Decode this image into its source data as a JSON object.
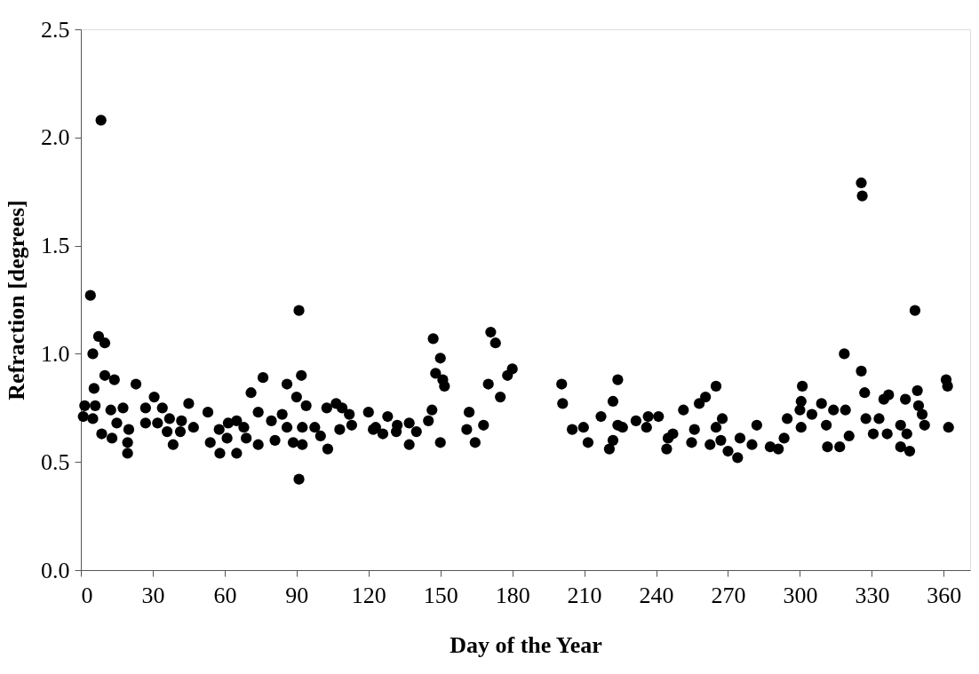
{
  "chart_data": {
    "type": "scatter",
    "xlabel": "Day of the Year",
    "ylabel": "Refraction [degrees]",
    "xlim": [
      0,
      371
    ],
    "xticks": [
      0,
      30,
      60,
      90,
      120,
      150,
      180,
      210,
      240,
      270,
      300,
      330,
      360
    ],
    "ylim": [
      0,
      2.5
    ],
    "yticks": [
      {
        "value": 0,
        "label": "0.0"
      },
      0.5,
      {
        "value": 1,
        "label": "1.0"
      },
      1.5,
      {
        "value": 2,
        "label": "2.0"
      },
      2.5
    ],
    "grid": false,
    "marker": "circle",
    "series": [
      {
        "color": "#000000",
        "x": [
          8.4,
          4,
          7.4,
          10,
          5,
          10,
          14,
          5.5,
          23,
          1.6,
          6,
          1,
          5,
          12.5,
          17.6,
          15,
          8.7,
          13,
          20,
          19.5,
          19.5,
          30.6,
          27,
          34,
          27,
          32,
          37,
          36,
          38.5,
          42,
          41.5,
          47,
          45,
          53,
          54,
          57.7,
          58,
          61.5,
          65,
          61,
          65,
          68,
          69,
          74,
          71,
          74,
          76,
          79.5,
          84,
          81,
          86,
          86,
          88.6,
          91,
          92,
          90,
          94,
          92.4,
          91,
          92.4,
          97.6,
          102.6,
          100,
          103,
          106.5,
          109,
          108,
          113,
          112,
          120,
          122,
          123,
          126,
          128,
          132,
          131.6,
          137,
          140,
          137,
          147,
          150,
          148,
          151,
          151.7,
          146.5,
          145,
          150,
          162,
          161,
          168,
          164.5,
          171,
          173,
          170,
          180,
          178,
          175,
          200.6,
          201,
          205,
          209.7,
          211.6,
          224,
          222,
          217,
          224,
          226,
          220.5,
          222,
          231.6,
          236,
          236.7,
          241,
          244.4,
          245,
          325.6,
          326,
          348,
          318.5,
          325.6,
          361,
          361.6,
          327,
          349,
          337,
          335,
          344,
          349.5,
          351,
          265,
          260.6,
          258,
          251.4,
          267.6,
          265,
          256,
          247,
          254.8,
          262.5,
          267,
          270,
          274,
          275,
          280,
          282,
          287.6,
          291,
          293.4,
          294.7,
          301,
          300.5,
          300,
          300.5,
          305,
          309,
          314,
          319,
          311,
          311.5,
          316.6,
          320.5,
          327.5,
          330.6,
          333,
          336.4,
          342,
          344.6,
          342,
          345.8,
          352,
          362
        ],
        "values": [
          2.08,
          1.27,
          1.08,
          1.05,
          1.0,
          0.9,
          0.88,
          0.84,
          0.86,
          0.76,
          0.76,
          0.71,
          0.7,
          0.74,
          0.75,
          0.68,
          0.63,
          0.61,
          0.65,
          0.59,
          0.54,
          0.8,
          0.75,
          0.75,
          0.68,
          0.68,
          0.7,
          0.64,
          0.58,
          0.69,
          0.64,
          0.66,
          0.77,
          0.73,
          0.59,
          0.65,
          0.54,
          0.68,
          0.69,
          0.61,
          0.54,
          0.66,
          0.61,
          0.58,
          0.82,
          0.73,
          0.89,
          0.69,
          0.72,
          0.6,
          0.86,
          0.66,
          0.59,
          1.2,
          0.9,
          0.8,
          0.76,
          0.58,
          0.42,
          0.66,
          0.66,
          0.75,
          0.62,
          0.56,
          0.77,
          0.75,
          0.65,
          0.67,
          0.72,
          0.73,
          0.65,
          0.66,
          0.63,
          0.71,
          0.67,
          0.64,
          0.68,
          0.64,
          0.58,
          1.07,
          0.98,
          0.91,
          0.88,
          0.85,
          0.74,
          0.69,
          0.59,
          0.73,
          0.65,
          0.67,
          0.59,
          1.1,
          1.05,
          0.86,
          0.93,
          0.9,
          0.8,
          0.86,
          0.77,
          0.65,
          0.66,
          0.59,
          0.88,
          0.78,
          0.71,
          0.67,
          0.66,
          0.56,
          0.6,
          0.69,
          0.66,
          0.71,
          0.71,
          0.56,
          0.61,
          1.79,
          1.73,
          1.2,
          1.0,
          0.92,
          0.88,
          0.85,
          0.82,
          0.83,
          0.81,
          0.79,
          0.79,
          0.76,
          0.72,
          0.85,
          0.8,
          0.77,
          0.74,
          0.7,
          0.66,
          0.65,
          0.63,
          0.59,
          0.58,
          0.6,
          0.55,
          0.52,
          0.61,
          0.58,
          0.67,
          0.57,
          0.56,
          0.61,
          0.7,
          0.85,
          0.78,
          0.74,
          0.66,
          0.72,
          0.77,
          0.74,
          0.74,
          0.67,
          0.57,
          0.57,
          0.62,
          0.7,
          0.63,
          0.7,
          0.63,
          0.67,
          0.63,
          0.57,
          0.55,
          0.67,
          0.66
        ]
      }
    ]
  }
}
